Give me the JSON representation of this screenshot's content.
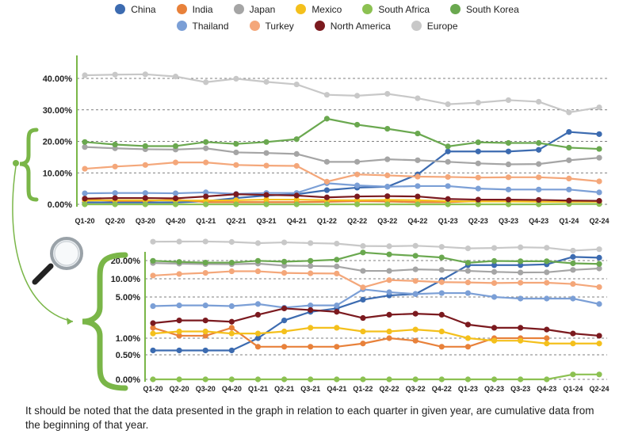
{
  "legend_title": "",
  "note": "It should be noted that the data presented in the graph in relation to each quarter in given year, are cumulative data from the beginning of that year.",
  "accent_color": "#7ab648",
  "magnifier_icon": "magnifier-icon",
  "chart_data": [
    {
      "type": "line",
      "title": "",
      "xlabel": "",
      "ylabel": "",
      "ylim": [
        0,
        40
      ],
      "scale": "linear",
      "grid": true,
      "legend": "top",
      "y_ticks": [
        0,
        10,
        20,
        30,
        40
      ],
      "y_tick_labels": [
        "0.00%",
        "10.00%",
        "20.00%",
        "30.00%",
        "40.00%"
      ],
      "categories": [
        "Q1-20",
        "Q2-20",
        "Q3-20",
        "Q4-20",
        "Q1-21",
        "Q2-21",
        "Q3-21",
        "Q4-21",
        "Q1-22",
        "Q2-22",
        "Q3-22",
        "Q4-22",
        "Q1-23",
        "Q2-23",
        "Q3-23",
        "Q4-23",
        "Q1-24",
        "Q2-24"
      ],
      "series": [
        {
          "name": "China",
          "color": "#3c6bb0",
          "values": [
            0.6,
            0.6,
            0.6,
            0.6,
            1.0,
            2.0,
            2.8,
            3.2,
            4.5,
            5.3,
            5.6,
            9.5,
            16.8,
            16.8,
            16.8,
            17.3,
            23.0,
            22.3
          ]
        },
        {
          "name": "India",
          "color": "#e8813a",
          "values": [
            1.5,
            1.1,
            1.1,
            1.5,
            0.7,
            0.7,
            0.7,
            0.7,
            0.8,
            1.0,
            0.9,
            0.7,
            0.7,
            1.0,
            1.0,
            1.0,
            null,
            null
          ]
        },
        {
          "name": "Japan",
          "color": "#a5a5a5",
          "values": [
            18.2,
            17.8,
            17.5,
            17.4,
            17.8,
            16.5,
            16.3,
            16.0,
            13.5,
            13.5,
            14.3,
            14.0,
            13.5,
            13.0,
            12.7,
            12.8,
            14.0,
            14.8
          ]
        },
        {
          "name": "Mexico",
          "color": "#f4c01c",
          "values": [
            1.2,
            1.3,
            1.3,
            1.2,
            1.2,
            1.3,
            1.5,
            1.5,
            1.3,
            1.3,
            1.4,
            1.3,
            1.0,
            0.9,
            0.9,
            0.8,
            0.8,
            0.8
          ]
        },
        {
          "name": "South Africa",
          "color": "#8cc152",
          "values": [
            0,
            0,
            0,
            0,
            0,
            0,
            0,
            0,
            0,
            0,
            0,
            0,
            0,
            0,
            0,
            0,
            0.1,
            0.1
          ]
        },
        {
          "name": "South Korea",
          "color": "#6aa84f",
          "values": [
            19.8,
            19.0,
            18.5,
            18.5,
            19.8,
            19.2,
            19.8,
            20.7,
            27.2,
            25.3,
            24.0,
            22.5,
            18.4,
            19.7,
            19.5,
            19.5,
            18.0,
            17.6
          ]
        },
        {
          "name": "Thailand",
          "color": "#7b9fd6",
          "values": [
            3.5,
            3.6,
            3.6,
            3.5,
            3.8,
            3.3,
            3.6,
            3.6,
            6.7,
            6.0,
            5.6,
            5.8,
            5.8,
            5.0,
            4.7,
            4.7,
            4.7,
            3.8
          ]
        },
        {
          "name": "Turkey",
          "color": "#f4a77a",
          "values": [
            11.3,
            12.0,
            12.5,
            13.3,
            13.3,
            12.5,
            12.3,
            12.2,
            7.2,
            9.5,
            9.2,
            8.8,
            8.7,
            8.5,
            8.6,
            8.6,
            8.2,
            7.3
          ]
        },
        {
          "name": "North America",
          "color": "#7b1a1f",
          "values": [
            1.8,
            2.0,
            2.0,
            1.9,
            2.5,
            3.2,
            3.0,
            2.8,
            2.2,
            2.5,
            2.6,
            2.5,
            1.7,
            1.5,
            1.5,
            1.4,
            1.2,
            1.1
          ]
        },
        {
          "name": "Europe",
          "color": "#c8c8c8",
          "values": [
            41.0,
            41.2,
            41.3,
            40.6,
            38.8,
            39.9,
            38.9,
            38.1,
            34.8,
            34.5,
            35.1,
            33.7,
            31.8,
            32.3,
            33.1,
            32.6,
            29.2,
            30.8
          ]
        }
      ]
    },
    {
      "type": "line",
      "title": "",
      "xlabel": "",
      "ylabel": "",
      "scale": "log",
      "grid": true,
      "y_ticks": [
        0,
        0.5,
        1,
        5,
        10,
        20
      ],
      "y_tick_labels": [
        "0.00%",
        "0.50%",
        "1.00%",
        "5.00%",
        "10.00%",
        "20.00%"
      ],
      "categories": [
        "Q1-20",
        "Q2-20",
        "Q3-20",
        "Q4-20",
        "Q1-21",
        "Q2-21",
        "Q3-21",
        "Q4-21",
        "Q1-22",
        "Q2-22",
        "Q3-22",
        "Q4-22",
        "Q1-23",
        "Q2-23",
        "Q3-23",
        "Q4-23",
        "Q1-24",
        "Q2-24"
      ],
      "series_ref": "same as upper chart"
    }
  ]
}
